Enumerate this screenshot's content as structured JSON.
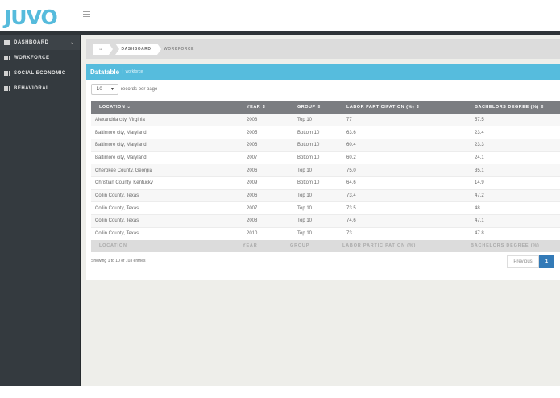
{
  "app": {
    "logo": "JUVO"
  },
  "sidebar": {
    "items": [
      {
        "label": "DASHBOARD",
        "icon": "briefcase-icon",
        "active": true
      },
      {
        "label": "WORKFORCE",
        "icon": "table-icon"
      },
      {
        "label": "SOCIAL ECONOMIC",
        "icon": "table-icon"
      },
      {
        "label": "BEHAVIORAL",
        "icon": "table-icon"
      }
    ],
    "chevron": "⌄"
  },
  "breadcrumb": {
    "home": "⌂",
    "items": [
      "DASHBOARD",
      "WORKFORCE"
    ]
  },
  "panel": {
    "title": "Datatable",
    "separator": "|",
    "subtitle": "workforce"
  },
  "length": {
    "value": "10",
    "label": "records per page"
  },
  "table": {
    "headers": [
      "LOCATION ⌄",
      "YEAR ⇕",
      "GROUP ⇕",
      "LABOR PARTICIPATION (%) ⇕",
      "BACHELORS DEGREE (%) ⇕"
    ],
    "footers": [
      "LOCATION",
      "YEAR",
      "GROUP",
      "LABOR PARTICIPATION (%)",
      "BACHELORS DEGREE (%)"
    ],
    "rows": [
      [
        "Alexandria city, Virginia",
        "2008",
        "Top 10",
        "77",
        "57.5"
      ],
      [
        "Baltimore city, Maryland",
        "2005",
        "Bottom 10",
        "63.6",
        "23.4"
      ],
      [
        "Baltimore city, Maryland",
        "2006",
        "Bottom 10",
        "60.4",
        "23.3"
      ],
      [
        "Baltimore city, Maryland",
        "2007",
        "Bottom 10",
        "60.2",
        "24.1"
      ],
      [
        "Cherokee County, Georgia",
        "2006",
        "Top 10",
        "75.0",
        "35.1"
      ],
      [
        "Christian County, Kentucky",
        "2009",
        "Bottom 10",
        "64.6",
        "14.9"
      ],
      [
        "Collin County, Texas",
        "2006",
        "Top 10",
        "73.4",
        "47.2"
      ],
      [
        "Collin County, Texas",
        "2007",
        "Top 10",
        "73.5",
        "48"
      ],
      [
        "Collin County, Texas",
        "2008",
        "Top 10",
        "74.6",
        "47.1"
      ],
      [
        "Collin County, Texas",
        "2010",
        "Top 10",
        "73",
        "47.8"
      ]
    ]
  },
  "info": "Showing 1 to 10 of 103 entries",
  "pagination": {
    "previous": "Previous",
    "current": "1"
  },
  "colors": {
    "accent": "#56bcdd",
    "sidebar": "#343a3f",
    "header": "#7b7d81",
    "page_active": "#337ab7"
  }
}
